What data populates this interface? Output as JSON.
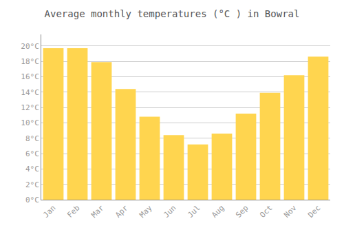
{
  "chart_data": {
    "type": "bar",
    "title": "Average monthly temperatures (°C ) in Bowral",
    "categories": [
      "Jan",
      "Feb",
      "Mar",
      "Apr",
      "May",
      "Jun",
      "Jul",
      "Aug",
      "Sep",
      "Oct",
      "Nov",
      "Dec"
    ],
    "values": [
      19.7,
      19.7,
      17.9,
      14.4,
      10.8,
      8.4,
      7.2,
      8.6,
      11.2,
      13.9,
      16.2,
      18.6
    ],
    "color": "#FFD54F",
    "ylim": [
      0,
      21.5
    ],
    "yticks": [
      {
        "value": 0,
        "label": "0°C"
      },
      {
        "value": 2,
        "label": "2°C"
      },
      {
        "value": 4,
        "label": "4°C"
      },
      {
        "value": 6,
        "label": "6°C"
      },
      {
        "value": 8,
        "label": "8°C"
      },
      {
        "value": 10,
        "label": "10°C"
      },
      {
        "value": 12,
        "label": "12°C"
      },
      {
        "value": 14,
        "label": "14°C"
      },
      {
        "value": 16,
        "label": "16°C"
      },
      {
        "value": 18,
        "label": "18°C"
      },
      {
        "value": 20,
        "label": "20°C"
      }
    ],
    "grid": true
  }
}
